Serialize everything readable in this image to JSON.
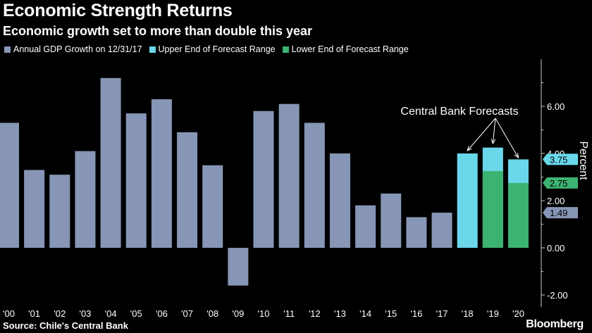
{
  "title": "Economic Strength Returns",
  "subtitle": "Economic growth set to more than double this year",
  "source": "Source: Chile's Central Bank",
  "brand": "Bloomberg",
  "legend": [
    {
      "label": "Annual GDP Growth on 12/31/17",
      "color": "#8796b6"
    },
    {
      "label": "Upper End of Forecast Range",
      "color": "#6ad8ea"
    },
    {
      "label": "Lower End of Forecast Range",
      "color": "#3cb371"
    }
  ],
  "annotation": "Central Bank Forecasts",
  "chart_data": {
    "type": "bar",
    "ylabel": "Percent",
    "ylim": [
      -2.25,
      8.0
    ],
    "yticks": [
      -2,
      0,
      2,
      4,
      6
    ],
    "ytick_labels": [
      "-2.00",
      "0.00",
      "2.00",
      "4.00",
      "6.00"
    ],
    "grid": false,
    "categories": [
      "'00",
      "'01",
      "'02",
      "'03",
      "'04",
      "'05",
      "'06",
      "'07",
      "'08",
      "'09",
      "'10",
      "'11",
      "'12",
      "'13",
      "'14",
      "'15",
      "'16",
      "'17",
      "'18",
      "'19",
      "'20"
    ],
    "series": [
      {
        "name": "Annual GDP Growth on 12/31/17",
        "color": "#8796b6",
        "values": [
          5.3,
          3.3,
          3.1,
          4.1,
          7.2,
          5.7,
          6.3,
          4.9,
          3.5,
          -1.6,
          5.8,
          6.1,
          5.3,
          4.0,
          1.8,
          2.3,
          1.3,
          1.49,
          null,
          null,
          null
        ]
      },
      {
        "name": "Upper End of Forecast Range",
        "color": "#6ad8ea",
        "values": [
          null,
          null,
          null,
          null,
          null,
          null,
          null,
          null,
          null,
          null,
          null,
          null,
          null,
          null,
          null,
          null,
          null,
          null,
          4.0,
          4.25,
          3.75
        ]
      },
      {
        "name": "Lower End of Forecast Range",
        "color": "#3cb371",
        "values": [
          null,
          null,
          null,
          null,
          null,
          null,
          null,
          null,
          null,
          null,
          null,
          null,
          null,
          null,
          null,
          null,
          null,
          null,
          null,
          3.25,
          2.75
        ]
      }
    ],
    "value_labels": [
      {
        "text": "3.75",
        "value": 3.75,
        "color": "#6ad8ea"
      },
      {
        "text": "2.75",
        "value": 2.75,
        "color": "#3cb371"
      },
      {
        "text": "1.49",
        "value": 1.49,
        "color": "#8796b6"
      }
    ]
  }
}
